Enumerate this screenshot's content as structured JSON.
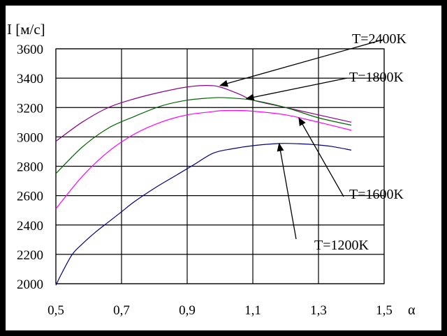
{
  "chart_data": {
    "type": "line",
    "ylabel": "I [м/с]",
    "xlabel": "α",
    "xlim": [
      0.5,
      1.5
    ],
    "ylim": [
      2000,
      3600
    ],
    "x_ticks": [
      "0,5",
      "0,7",
      "0,9",
      "1,1",
      "1,3",
      "1,5"
    ],
    "x_tick_values": [
      0.5,
      0.7,
      0.9,
      1.1,
      1.3,
      1.5
    ],
    "y_ticks": [
      "2000",
      "2200",
      "2400",
      "2600",
      "2800",
      "3000",
      "3200",
      "3400",
      "3600"
    ],
    "y_tick_values": [
      2000,
      2200,
      2400,
      2600,
      2800,
      3000,
      3200,
      3400,
      3600
    ],
    "grid": true,
    "series": [
      {
        "name": "T=2400K",
        "color": "#8b008b",
        "x": [
          0.5,
          0.58,
          0.66,
          0.74,
          0.82,
          0.9,
          0.96,
          1.0,
          1.06,
          1.1,
          1.2,
          1.3,
          1.4
        ],
        "y": [
          2970,
          3100,
          3200,
          3260,
          3305,
          3340,
          3350,
          3340,
          3290,
          3250,
          3200,
          3150,
          3100
        ]
      },
      {
        "name": "T=1800K",
        "color": "#006400",
        "x": [
          0.5,
          0.58,
          0.66,
          0.74,
          0.82,
          0.9,
          0.97,
          1.0,
          1.05,
          1.1,
          1.2,
          1.3,
          1.4
        ],
        "y": [
          2750,
          2930,
          3060,
          3140,
          3210,
          3250,
          3265,
          3268,
          3262,
          3250,
          3200,
          3130,
          3080
        ]
      },
      {
        "name": "T=1600K",
        "color": "#ff00ff",
        "x": [
          0.5,
          0.58,
          0.66,
          0.74,
          0.82,
          0.9,
          0.97,
          1.0,
          1.05,
          1.1,
          1.2,
          1.3,
          1.4
        ],
        "y": [
          2510,
          2730,
          2900,
          3020,
          3100,
          3150,
          3170,
          3178,
          3180,
          3175,
          3150,
          3100,
          3045
        ]
      },
      {
        "name": "T=1200K",
        "color": "#000080",
        "x": [
          0.5,
          0.52,
          0.55,
          0.58,
          0.62,
          0.66,
          0.7,
          0.74,
          0.8,
          0.86,
          0.92,
          0.98,
          1.04,
          1.1,
          1.18,
          1.24,
          1.3,
          1.34,
          1.4
        ],
        "y": [
          1990,
          2080,
          2200,
          2270,
          2350,
          2420,
          2490,
          2560,
          2650,
          2730,
          2810,
          2890,
          2920,
          2940,
          2955,
          2953,
          2945,
          2935,
          2910
        ]
      }
    ],
    "annotations": [
      {
        "text": "T=2400K",
        "target": [
          1.0,
          3350
        ]
      },
      {
        "text": "T=1800K",
        "target": [
          1.08,
          3260
        ]
      },
      {
        "text": "T=1600K",
        "target": [
          1.24,
          3130
        ]
      },
      {
        "text": "T=1200K",
        "target": [
          1.18,
          2955
        ]
      }
    ]
  }
}
